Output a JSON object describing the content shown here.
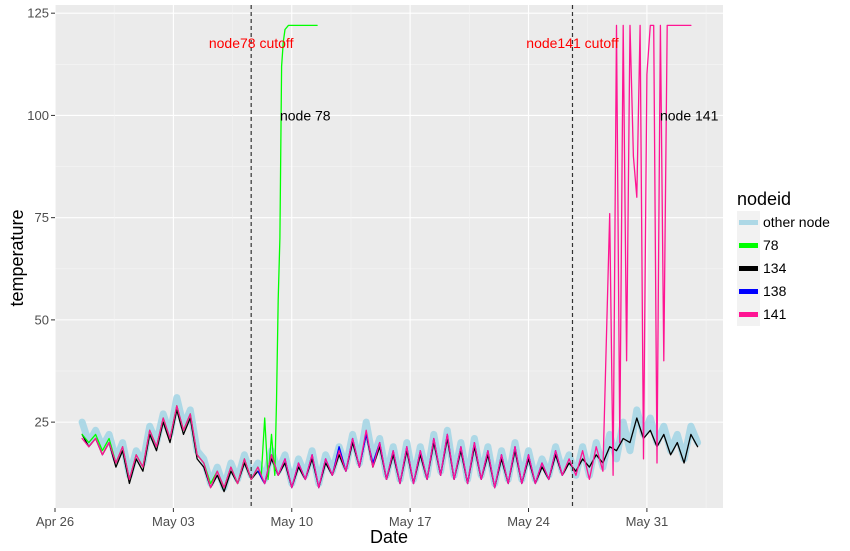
{
  "chart_data": {
    "type": "line",
    "xlabel": "Date",
    "ylabel": "temperature",
    "x_tick_labels": [
      "Apr 26",
      "May 03",
      "May 10",
      "May 17",
      "May 24",
      "May 31"
    ],
    "x_tick_values": [
      0,
      7,
      14,
      21,
      28,
      35
    ],
    "y_tick_labels": [
      "25",
      "50",
      "75",
      "100",
      "125"
    ],
    "y_tick_values": [
      25,
      50,
      75,
      100,
      125
    ],
    "xlim": [
      0,
      39.5
    ],
    "ylim": [
      4,
      127
    ],
    "grid": true,
    "legend": {
      "title": "nodeid",
      "placement": "right",
      "entries": [
        {
          "label": "other node",
          "color": "#add8e6"
        },
        {
          "label": "78",
          "color": "#00ff00"
        },
        {
          "label": "134",
          "color": "#000000"
        },
        {
          "label": "138",
          "color": "#0000ff"
        },
        {
          "label": "141",
          "color": "#ff1493"
        }
      ]
    },
    "cutoffs": [
      {
        "label": "node78 cutoff",
        "x": 11.6
      },
      {
        "label": "node141 cutoff",
        "x": 30.6
      }
    ],
    "annotations": [
      {
        "text": "node 78",
        "x": 14.8,
        "y": 100
      },
      {
        "text": "node 141",
        "x": 37.5,
        "y": 100
      }
    ],
    "series": [
      {
        "name": "other node",
        "color": "#add8e6",
        "x": [
          1.6,
          2.0,
          2.4,
          2.8,
          3.2,
          3.6,
          4.0,
          4.4,
          4.8,
          5.2,
          5.6,
          6.0,
          6.4,
          6.8,
          7.2,
          7.6,
          8.0,
          8.4,
          8.8,
          9.2,
          9.6,
          10.0,
          10.4,
          10.8,
          11.2,
          11.6,
          12.0,
          12.4,
          12.8,
          13.2,
          13.6,
          14.0,
          14.4,
          14.8,
          15.2,
          15.6,
          16.0,
          16.4,
          16.8,
          17.2,
          17.6,
          18.0,
          18.4,
          18.8,
          19.2,
          19.6,
          20.0,
          20.4,
          20.8,
          21.2,
          21.6,
          22.0,
          22.4,
          22.8,
          23.2,
          23.6,
          24.0,
          24.4,
          24.8,
          25.2,
          25.6,
          26.0,
          26.4,
          26.8,
          27.2,
          27.6,
          28.0,
          28.4,
          28.8,
          29.2,
          29.6,
          30.0,
          30.4,
          30.8,
          31.2,
          31.6,
          32.0,
          32.4,
          32.8,
          33.2,
          33.6,
          34.0,
          34.4,
          34.8,
          35.2,
          35.6,
          36.0,
          36.4,
          36.8,
          37.2,
          37.6,
          38.0
        ],
        "y": [
          25,
          20,
          23,
          19,
          22,
          16,
          20,
          12,
          18,
          15,
          24,
          20,
          27,
          22,
          31,
          24,
          28,
          18,
          16,
          10,
          14,
          9,
          15,
          11,
          17,
          12,
          15,
          11,
          18,
          13,
          17,
          10,
          16,
          12,
          18,
          10,
          17,
          13,
          19,
          14,
          22,
          15,
          25,
          16,
          21,
          12,
          19,
          11,
          20,
          11,
          19,
          12,
          22,
          13,
          23,
          12,
          20,
          11,
          21,
          12,
          19,
          10,
          18,
          11,
          20,
          11,
          18,
          11,
          16,
          12,
          19,
          13,
          17,
          12,
          19,
          12,
          20,
          14,
          22,
          16,
          25,
          18,
          28,
          22,
          26,
          20,
          24,
          18,
          22,
          16,
          24,
          20
        ]
      },
      {
        "name": "134",
        "color": "#000000",
        "x": [
          1.6,
          2.0,
          2.4,
          2.8,
          3.2,
          3.6,
          4.0,
          4.4,
          4.8,
          5.2,
          5.6,
          6.0,
          6.4,
          6.8,
          7.2,
          7.6,
          8.0,
          8.4,
          8.8,
          9.2,
          9.6,
          10.0,
          10.4,
          10.8,
          11.2,
          11.6,
          12.0,
          12.4,
          12.8,
          13.2,
          13.6,
          14.0,
          14.4,
          14.8,
          15.2,
          15.6,
          16.0,
          16.4,
          16.8,
          17.2,
          17.6,
          18.0,
          18.4,
          18.8,
          19.2,
          19.6,
          20.0,
          20.4,
          20.8,
          21.2,
          21.6,
          22.0,
          22.4,
          22.8,
          23.2,
          23.6,
          24.0,
          24.4,
          24.8,
          25.2,
          25.6,
          26.0,
          26.4,
          26.8,
          27.2,
          27.6,
          28.0,
          28.4,
          28.8,
          29.2,
          29.6,
          30.0,
          30.4,
          30.8,
          31.2,
          31.6,
          32.0,
          32.4,
          32.8,
          33.2,
          33.6,
          34.0,
          34.4,
          34.8,
          35.2,
          35.6,
          36.0,
          36.4,
          36.8,
          37.2,
          37.6,
          38.0
        ],
        "y": [
          22,
          19,
          21,
          17,
          20,
          14,
          18,
          10,
          16,
          13,
          22,
          18,
          25,
          20,
          28,
          22,
          26,
          16,
          14,
          9,
          12,
          8,
          13,
          10,
          15,
          11,
          13,
          10,
          16,
          12,
          15,
          9,
          14,
          11,
          16,
          9,
          15,
          12,
          17,
          13,
          20,
          14,
          22,
          14,
          19,
          11,
          17,
          10,
          18,
          10,
          17,
          11,
          20,
          12,
          21,
          11,
          18,
          10,
          19,
          11,
          17,
          9,
          16,
          10,
          18,
          10,
          16,
          10,
          14,
          11,
          17,
          12,
          15,
          13,
          16,
          14,
          17,
          15,
          19,
          18,
          21,
          20,
          26,
          21,
          23,
          19,
          22,
          17,
          20,
          15,
          22,
          19
        ]
      },
      {
        "name": "138",
        "color": "#0000ff",
        "x": [
          12.0,
          12.4,
          12.8,
          13.2,
          13.6,
          14.0,
          14.4,
          14.8,
          15.2,
          15.6,
          16.0,
          16.4,
          16.8,
          17.2,
          17.6,
          18.0,
          18.4,
          18.8,
          19.2,
          19.6,
          20.0,
          20.4,
          20.8,
          21.2,
          21.6,
          22.0,
          22.4,
          22.8,
          23.2,
          23.6,
          24.0,
          24.4,
          24.8,
          25.2,
          25.6,
          26.0,
          26.4,
          26.8,
          27.2,
          27.6,
          28.0,
          28.4,
          28.8,
          29.2,
          29.6,
          30.0
        ],
        "y": [
          13,
          10,
          17,
          12,
          16,
          9,
          15,
          11,
          17,
          9,
          16,
          12,
          19,
          13,
          21,
          14,
          22,
          15,
          20,
          11,
          18,
          10,
          19,
          10,
          18,
          11,
          21,
          12,
          22,
          11,
          19,
          10,
          20,
          11,
          18,
          9,
          17,
          10,
          19,
          10,
          17,
          10,
          15,
          11,
          18,
          12
        ]
      },
      {
        "name": "78",
        "color": "#00ff00",
        "x": [
          1.6,
          2.0,
          2.4,
          2.8,
          3.2,
          3.6,
          4.0,
          4.4,
          4.8,
          5.2,
          5.6,
          6.0,
          6.4,
          6.8,
          7.2,
          7.6,
          8.0,
          8.4,
          8.8,
          9.2,
          9.6,
          10.0,
          10.4,
          10.8,
          11.2,
          11.6,
          12.0,
          12.2,
          12.4,
          12.6,
          12.8,
          13.0,
          13.1,
          13.2,
          13.3,
          13.4,
          13.5,
          13.6,
          13.8,
          14.0,
          14.5,
          15.0,
          15.5
        ],
        "y": [
          22,
          20,
          22,
          18,
          21,
          15,
          19,
          11,
          17,
          14,
          23,
          19,
          26,
          21,
          29,
          23,
          27,
          17,
          15,
          10,
          13,
          9,
          14,
          10,
          16,
          11,
          14,
          12,
          26,
          11,
          22,
          12,
          30,
          55,
          70,
          112,
          118,
          121,
          122,
          122,
          122,
          122,
          122
        ]
      },
      {
        "name": "141",
        "color": "#ff1493",
        "x": [
          1.6,
          2.0,
          2.4,
          2.8,
          3.2,
          3.6,
          4.0,
          4.4,
          4.8,
          5.2,
          5.6,
          6.0,
          6.4,
          6.8,
          7.2,
          7.6,
          8.0,
          8.4,
          8.8,
          9.2,
          9.6,
          10.0,
          10.4,
          10.8,
          11.2,
          11.6,
          12.0,
          12.4,
          12.8,
          13.2,
          13.6,
          14.0,
          14.4,
          14.8,
          15.2,
          15.6,
          16.0,
          16.4,
          16.8,
          17.2,
          17.6,
          18.0,
          18.4,
          18.8,
          19.2,
          19.6,
          20.0,
          20.4,
          20.8,
          21.2,
          21.6,
          22.0,
          22.4,
          22.8,
          23.2,
          23.6,
          24.0,
          24.4,
          24.8,
          25.2,
          25.6,
          26.0,
          26.4,
          26.8,
          27.2,
          27.6,
          28.0,
          28.4,
          28.8,
          29.2,
          29.6,
          30.0,
          30.4,
          30.8,
          31.2,
          31.6,
          32.0,
          32.4,
          32.8,
          33.0,
          33.2,
          33.4,
          33.6,
          33.8,
          34.0,
          34.2,
          34.4,
          34.6,
          34.8,
          35.0,
          35.2,
          35.4,
          35.6,
          35.8,
          36.0,
          36.2,
          36.4,
          36.6,
          37.0,
          37.6
        ],
        "y": [
          21,
          19,
          21,
          17,
          20,
          15,
          19,
          11,
          17,
          14,
          23,
          19,
          26,
          21,
          29,
          23,
          27,
          17,
          15,
          9,
          13,
          9,
          14,
          10,
          16,
          11,
          14,
          10,
          17,
          12,
          16,
          9,
          15,
          11,
          17,
          9,
          16,
          12,
          18,
          13,
          21,
          14,
          23,
          14,
          20,
          11,
          18,
          10,
          19,
          10,
          18,
          11,
          21,
          12,
          22,
          11,
          19,
          10,
          20,
          11,
          18,
          9,
          17,
          10,
          19,
          10,
          17,
          10,
          15,
          11,
          18,
          12,
          16,
          12,
          18,
          11,
          19,
          13,
          76,
          12,
          122,
          20,
          122,
          40,
          122,
          90,
          80,
          122,
          16,
          110,
          122,
          122,
          15,
          122,
          40,
          122,
          122,
          122,
          122,
          122
        ]
      }
    ]
  }
}
